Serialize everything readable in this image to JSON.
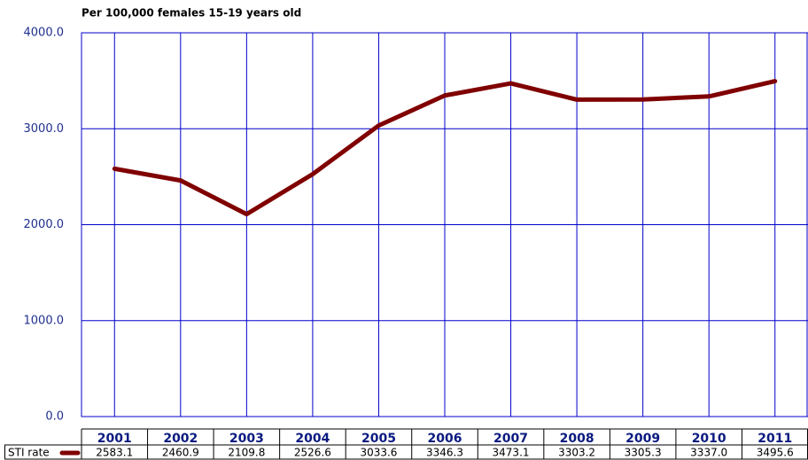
{
  "chart_data": {
    "type": "line",
    "title": "Per 100,000 females 15-19 years old",
    "categories": [
      "2001",
      "2002",
      "2003",
      "2004",
      "2005",
      "2006",
      "2007",
      "2008",
      "2009",
      "2010",
      "2011"
    ],
    "series": [
      {
        "name": "STI rate",
        "color": "#800000",
        "values": [
          2583.1,
          2460.9,
          2109.8,
          2526.6,
          3033.6,
          3346.3,
          3473.1,
          3303.2,
          3305.3,
          3337.0,
          3495.6
        ],
        "value_labels": [
          "2583.1",
          "2460.9",
          "2109.8",
          "2526.6",
          "3033.6",
          "3346.3",
          "3473.1",
          "3303.2",
          "3305.3",
          "3337.0",
          "3495.6"
        ]
      }
    ],
    "ylim": [
      0,
      4000
    ],
    "yticks": [
      {
        "value": 0,
        "label": "0.0"
      },
      {
        "value": 1000,
        "label": "1000.0"
      },
      {
        "value": 2000,
        "label": "2000.0"
      },
      {
        "value": 3000,
        "label": "3000.0"
      },
      {
        "value": 4000,
        "label": "4000.0"
      }
    ],
    "grid": true,
    "grid_color": "#0000cc"
  }
}
